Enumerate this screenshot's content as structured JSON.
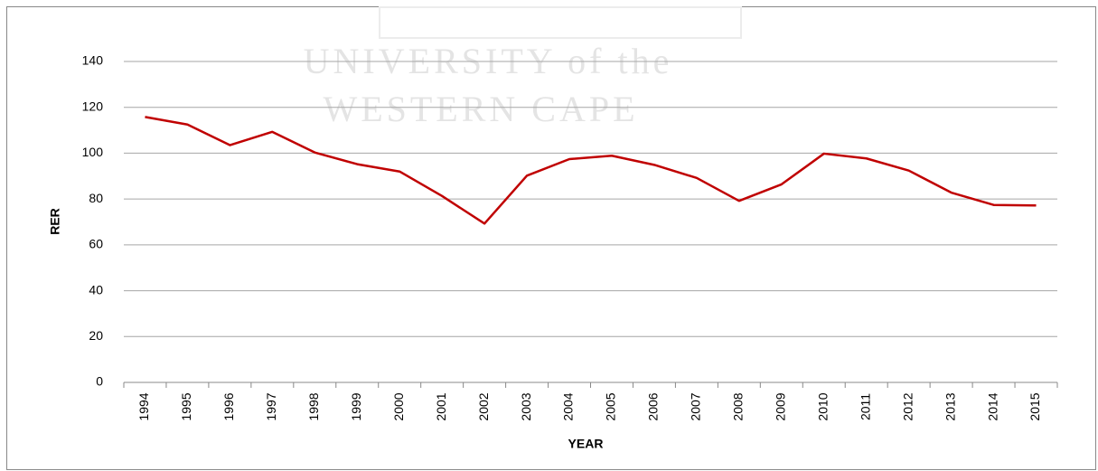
{
  "chart_data": {
    "type": "line",
    "watermark": [
      "UNIVERSITY of the",
      "WESTERN CAPE"
    ],
    "x_label": "YEAR",
    "y_label": "RER",
    "categories": [
      "1994",
      "1995",
      "1996",
      "1997",
      "1998",
      "1999",
      "2000",
      "2001",
      "2002",
      "2003",
      "2004",
      "2005",
      "2006",
      "2007",
      "2008",
      "2009",
      "2010",
      "2011",
      "2012",
      "2013",
      "2014",
      "2015"
    ],
    "series": [
      {
        "name": "RER",
        "color": "#c00000",
        "values": [
          115.8,
          112.5,
          103.5,
          109.3,
          100.3,
          95.2,
          92,
          81.3,
          69.3,
          90.2,
          97.4,
          98.9,
          94.9,
          89.2,
          79.2,
          86.4,
          99.8,
          97.7,
          92.4,
          82.8,
          77.4,
          77.2
        ]
      }
    ],
    "ylim": [
      0,
      140
    ],
    "yticks": [
      0,
      20,
      40,
      60,
      80,
      100,
      120,
      140
    ],
    "grid": true,
    "legend": false
  }
}
